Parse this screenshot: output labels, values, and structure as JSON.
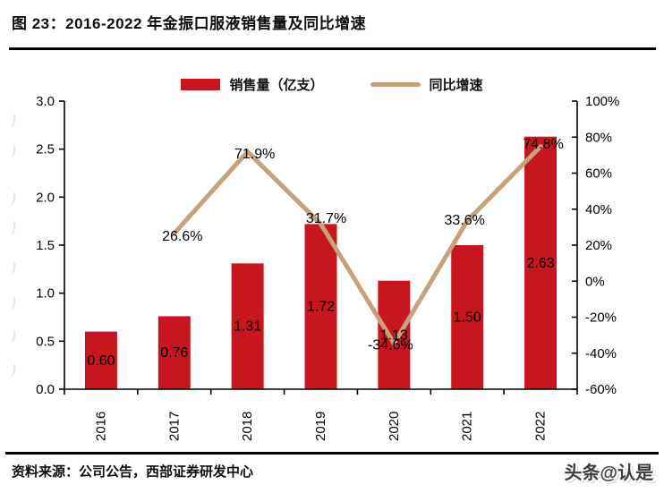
{
  "title": "图 23：2016-2022 年金振口服液销售量及同比增速",
  "source": "资料来源：公司公告，西部证券研发中心",
  "watermark": "头条@认是",
  "colors": {
    "bar": "#C8161E",
    "line": "#C7A17C",
    "axis": "#000000",
    "label": "#000000"
  },
  "chart_data": {
    "type": "bar+line",
    "title": "2016-2022 年金振口服液销售量及同比增速",
    "categories": [
      "2016",
      "2017",
      "2018",
      "2019",
      "2020",
      "2021",
      "2022"
    ],
    "series": [
      {
        "name": "销售量（亿支）",
        "type": "bar",
        "axis": "left",
        "color": "#C8161E",
        "values": [
          0.6,
          0.76,
          1.31,
          1.72,
          1.13,
          1.5,
          2.63
        ],
        "labels": [
          "0.60",
          "0.76",
          "1.31",
          "1.72",
          "1.13",
          "1.50",
          "2.63"
        ]
      },
      {
        "name": "同比增速",
        "type": "line",
        "axis": "right",
        "color": "#C7A17C",
        "x": [
          "2017",
          "2018",
          "2019",
          "2020",
          "2021",
          "2022"
        ],
        "values": [
          26.6,
          71.9,
          31.7,
          -34.6,
          33.6,
          74.8
        ],
        "labels": [
          "26.6%",
          "71.9%",
          "31.7%",
          "-34.6%",
          "33.6%",
          "74.8%"
        ]
      }
    ],
    "left_axis": {
      "min": 0,
      "max": 3,
      "step": 0.5,
      "ticks": [
        "0.0",
        "0.5",
        "1.0",
        "1.5",
        "2.0",
        "2.5",
        "3.0"
      ]
    },
    "right_axis": {
      "min": -60,
      "max": 100,
      "step": 20,
      "ticks": [
        "-60%",
        "-40%",
        "-20%",
        "0%",
        "20%",
        "40%",
        "60%",
        "80%",
        "100%"
      ]
    },
    "grid": false,
    "legend_position": "top"
  }
}
